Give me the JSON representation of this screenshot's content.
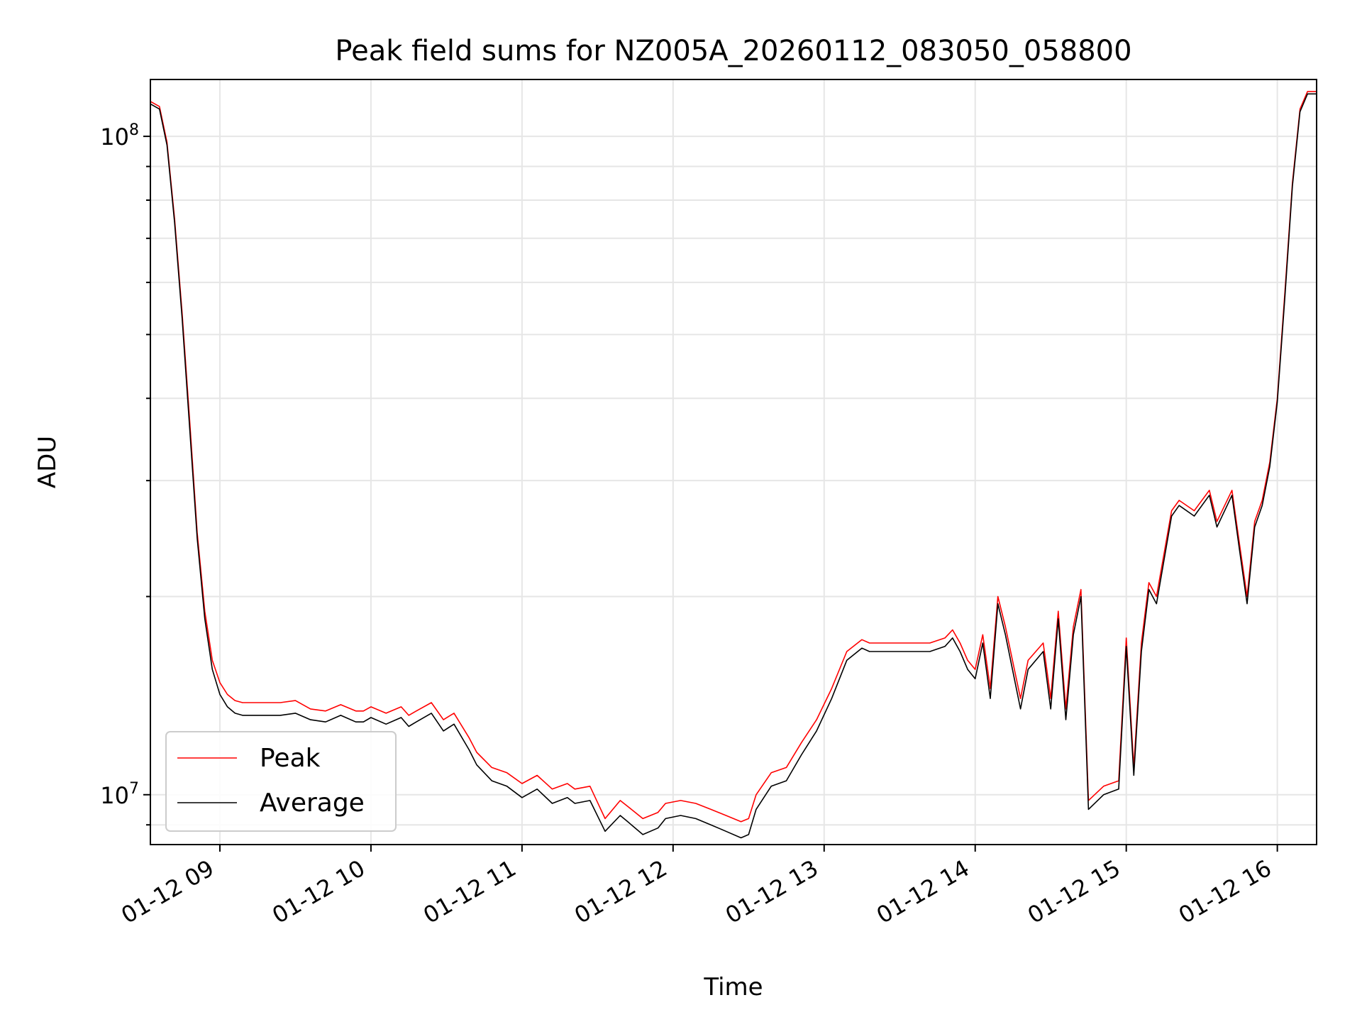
{
  "chart_data": {
    "type": "line",
    "title": "Peak field sums for NZ005A_20260112_083050_058800",
    "xlabel": "Time",
    "ylabel": "ADU",
    "x_unit": "hour of 2026-01-12 (decimal)",
    "xlim": [
      8.54,
      16.26
    ],
    "ylim": [
      8400000.0,
      122000000.0
    ],
    "yscale": "log",
    "grid": true,
    "legend_position": "lower left",
    "x_ticks": [
      {
        "value": 9,
        "label": "01-12 09"
      },
      {
        "value": 10,
        "label": "01-12 10"
      },
      {
        "value": 11,
        "label": "01-12 11"
      },
      {
        "value": 12,
        "label": "01-12 12"
      },
      {
        "value": 13,
        "label": "01-12 13"
      },
      {
        "value": 14,
        "label": "01-12 14"
      },
      {
        "value": 15,
        "label": "01-12 15"
      },
      {
        "value": 16,
        "label": "01-12 16"
      }
    ],
    "y_ticks": [
      {
        "value": 10000000,
        "label": "10^7"
      },
      {
        "value": 100000000,
        "label": "10^8"
      }
    ],
    "series": [
      {
        "name": "Peak",
        "color": "#ff0000",
        "x": [
          8.54,
          8.6,
          8.65,
          8.7,
          8.75,
          8.8,
          8.85,
          8.9,
          8.95,
          9.0,
          9.05,
          9.1,
          9.15,
          9.2,
          9.3,
          9.4,
          9.5,
          9.6,
          9.7,
          9.8,
          9.9,
          9.95,
          10.0,
          10.1,
          10.2,
          10.25,
          10.3,
          10.4,
          10.48,
          10.55,
          10.65,
          10.7,
          10.8,
          10.9,
          11.0,
          11.1,
          11.2,
          11.3,
          11.35,
          11.45,
          11.55,
          11.65,
          11.7,
          11.8,
          11.9,
          11.95,
          12.05,
          12.15,
          12.25,
          12.35,
          12.45,
          12.5,
          12.55,
          12.65,
          12.75,
          12.85,
          12.95,
          13.05,
          13.15,
          13.25,
          13.3,
          13.4,
          13.5,
          13.6,
          13.7,
          13.8,
          13.85,
          13.9,
          13.95,
          14.0,
          14.05,
          14.1,
          14.15,
          14.2,
          14.3,
          14.35,
          14.45,
          14.5,
          14.55,
          14.6,
          14.65,
          14.7,
          14.75,
          14.85,
          14.95,
          15.0,
          15.05,
          15.1,
          15.15,
          15.2,
          15.3,
          15.35,
          15.45,
          15.55,
          15.6,
          15.7,
          15.75,
          15.8,
          15.85,
          15.9,
          15.95,
          16.0,
          16.05,
          16.1,
          16.15,
          16.2,
          16.26
        ],
        "y": [
          113000000,
          111000000,
          98000000,
          75000000,
          54000000,
          37000000,
          25000000,
          19000000,
          16000000,
          14800000,
          14200000,
          13900000,
          13800000,
          13800000,
          13800000,
          13800000,
          13900000,
          13500000,
          13400000,
          13700000,
          13400000,
          13400000,
          13600000,
          13300000,
          13600000,
          13200000,
          13400000,
          13800000,
          13000000,
          13300000,
          12200000,
          11600000,
          11000000,
          10800000,
          10400000,
          10700000,
          10200000,
          10400000,
          10200000,
          10300000,
          9200000,
          9800000,
          9600000,
          9200000,
          9400000,
          9700000,
          9800000,
          9700000,
          9500000,
          9300000,
          9100000,
          9200000,
          10000000,
          10800000,
          11000000,
          12000000,
          13000000,
          14500000,
          16500000,
          17200000,
          17000000,
          17000000,
          17000000,
          17000000,
          17000000,
          17300000,
          17800000,
          17000000,
          16000000,
          15500000,
          17500000,
          14500000,
          20000000,
          18000000,
          14000000,
          16000000,
          17000000,
          14000000,
          19000000,
          13500000,
          18000000,
          20500000,
          9800000,
          10300000,
          10500000,
          17300000,
          11000000,
          17000000,
          21000000,
          20000000,
          27000000,
          28000000,
          27000000,
          29000000,
          26000000,
          29000000,
          24000000,
          20000000,
          26000000,
          28000000,
          32000000,
          40000000,
          58000000,
          85000000,
          110000000,
          117000000,
          117000000
        ]
      },
      {
        "name": "Average",
        "color": "#000000",
        "x": [
          8.54,
          8.6,
          8.65,
          8.7,
          8.75,
          8.8,
          8.85,
          8.9,
          8.95,
          9.0,
          9.05,
          9.1,
          9.15,
          9.2,
          9.3,
          9.4,
          9.5,
          9.6,
          9.7,
          9.8,
          9.9,
          9.95,
          10.0,
          10.1,
          10.2,
          10.25,
          10.3,
          10.4,
          10.48,
          10.55,
          10.65,
          10.7,
          10.8,
          10.9,
          11.0,
          11.1,
          11.2,
          11.3,
          11.35,
          11.45,
          11.55,
          11.65,
          11.7,
          11.8,
          11.9,
          11.95,
          12.05,
          12.15,
          12.25,
          12.35,
          12.45,
          12.5,
          12.55,
          12.65,
          12.75,
          12.85,
          12.95,
          13.05,
          13.15,
          13.25,
          13.3,
          13.4,
          13.5,
          13.6,
          13.7,
          13.8,
          13.85,
          13.9,
          13.95,
          14.0,
          14.05,
          14.1,
          14.15,
          14.2,
          14.3,
          14.35,
          14.45,
          14.5,
          14.55,
          14.6,
          14.65,
          14.7,
          14.75,
          14.85,
          14.95,
          15.0,
          15.05,
          15.1,
          15.15,
          15.2,
          15.3,
          15.35,
          15.45,
          15.55,
          15.6,
          15.7,
          15.75,
          15.8,
          15.85,
          15.9,
          15.95,
          16.0,
          16.05,
          16.1,
          16.15,
          16.2,
          16.26
        ],
        "y": [
          112000000,
          110000000,
          97000000,
          74000000,
          53000000,
          36000000,
          24500000,
          18500000,
          15500000,
          14200000,
          13600000,
          13300000,
          13200000,
          13200000,
          13200000,
          13200000,
          13300000,
          13000000,
          12900000,
          13200000,
          12900000,
          12900000,
          13100000,
          12800000,
          13100000,
          12700000,
          12900000,
          13300000,
          12500000,
          12800000,
          11700000,
          11100000,
          10500000,
          10300000,
          9900000,
          10200000,
          9700000,
          9900000,
          9700000,
          9800000,
          8800000,
          9300000,
          9100000,
          8700000,
          8900000,
          9200000,
          9300000,
          9200000,
          9000000,
          8800000,
          8600000,
          8700000,
          9500000,
          10300000,
          10500000,
          11500000,
          12500000,
          14000000,
          16000000,
          16700000,
          16500000,
          16500000,
          16500000,
          16500000,
          16500000,
          16800000,
          17300000,
          16500000,
          15500000,
          15000000,
          17000000,
          14000000,
          19500000,
          17500000,
          13500000,
          15500000,
          16500000,
          13500000,
          18500000,
          13000000,
          17500000,
          20000000,
          9500000,
          10000000,
          10200000,
          16800000,
          10700000,
          16500000,
          20500000,
          19500000,
          26500000,
          27500000,
          26500000,
          28500000,
          25500000,
          28500000,
          23500000,
          19500000,
          25500000,
          27500000,
          31500000,
          39500000,
          57000000,
          84000000,
          109000000,
          116000000,
          116000000
        ]
      }
    ]
  }
}
